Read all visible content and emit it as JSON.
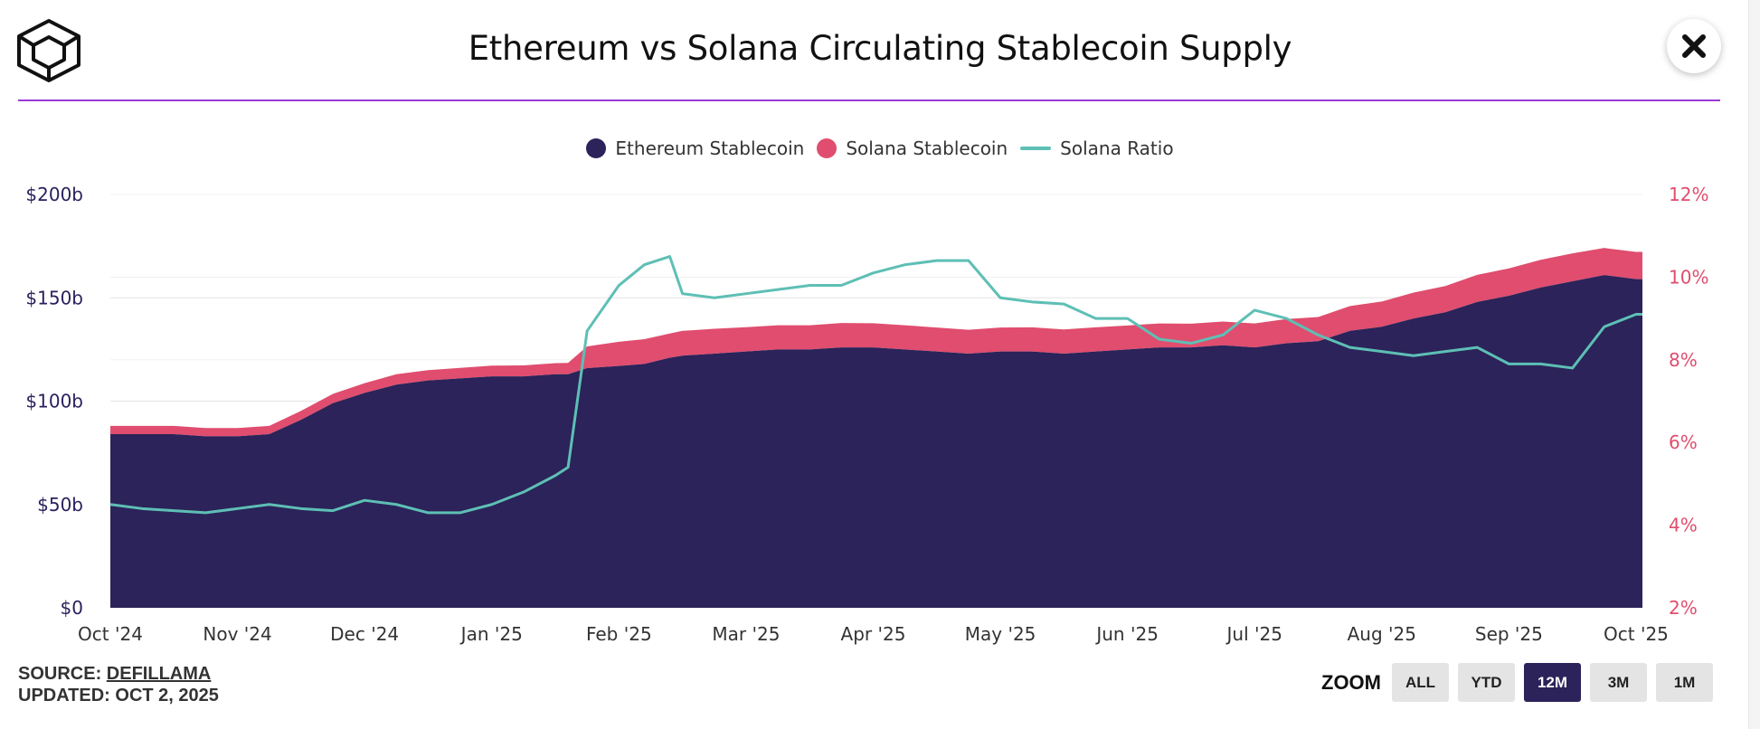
{
  "header": {
    "title": "Ethereum vs Solana Circulating Stablecoin Supply",
    "logo_icon": "cube-logo-icon",
    "close_icon": "close-icon"
  },
  "legend": {
    "items": [
      {
        "label": "Ethereum Stablecoin",
        "color": "#2b2359",
        "swatch": "dot"
      },
      {
        "label": "Solana Stablecoin",
        "color": "#e04d6e",
        "swatch": "dot"
      },
      {
        "label": "Solana Ratio",
        "color": "#5ebfb5",
        "swatch": "line"
      }
    ]
  },
  "footer": {
    "source_prefix": "SOURCE: ",
    "source_link": "DEFILLAMA",
    "updated": "UPDATED: OCT 2, 2025"
  },
  "zoom": {
    "label": "ZOOM",
    "buttons": [
      "ALL",
      "YTD",
      "12M",
      "3M",
      "1M"
    ],
    "active": "12M"
  },
  "chart_data": {
    "type": "area",
    "title": "Ethereum vs Solana Circulating Stablecoin Supply",
    "x_label_ticks": [
      "Oct '24",
      "Nov '24",
      "Dec '24",
      "Jan '25",
      "Feb '25",
      "Mar '25",
      "Apr '25",
      "May '25",
      "Jun '25",
      "Jul '25",
      "Aug '25",
      "Sep '25",
      "Oct '25"
    ],
    "y_left": {
      "ticks": [
        "$0",
        "$50b",
        "$100b",
        "$150b",
        "$200b"
      ],
      "range": [
        0,
        200
      ],
      "unit": "$b"
    },
    "y_right": {
      "ticks": [
        "2%",
        "4%",
        "6%",
        "8%",
        "10%",
        "12%"
      ],
      "range": [
        2,
        12
      ],
      "unit": "%"
    },
    "x_months": [
      0,
      0.25,
      0.5,
      0.75,
      1,
      1.25,
      1.5,
      1.75,
      2,
      2.25,
      2.5,
      2.75,
      3,
      3.25,
      3.5,
      3.6,
      3.75,
      4,
      4.2,
      4.4,
      4.5,
      4.75,
      5,
      5.25,
      5.5,
      5.75,
      6,
      6.25,
      6.5,
      6.75,
      7,
      7.25,
      7.5,
      7.75,
      8,
      8.25,
      8.5,
      8.75,
      9,
      9.25,
      9.5,
      9.75,
      10,
      10.25,
      10.5,
      10.75,
      11,
      11.25,
      11.5,
      11.75,
      12,
      12.05
    ],
    "series": [
      {
        "name": "Ethereum Stablecoin",
        "axis": "left",
        "color": "#2b2359",
        "values": [
          84,
          84,
          84,
          83,
          83,
          84,
          91,
          99,
          104,
          108,
          110,
          111,
          112,
          112,
          113,
          113,
          116,
          117,
          118,
          121,
          122,
          123,
          124,
          125,
          125,
          126,
          126,
          125,
          124,
          123,
          124,
          124,
          123,
          124,
          125,
          126,
          126,
          127,
          126,
          128,
          129,
          134,
          136,
          140,
          143,
          148,
          151,
          155,
          158,
          161,
          159,
          159
        ]
      },
      {
        "name": "Solana Stablecoin",
        "axis": "left",
        "color": "#e04d6e",
        "values": [
          4,
          4,
          4,
          4,
          4,
          4,
          4.3,
          4.5,
          4.7,
          5,
          5,
          5.1,
          5.2,
          5.3,
          5.4,
          5.5,
          10.5,
          11.7,
          12,
          11.7,
          12,
          12,
          11.8,
          11.7,
          11.7,
          11.8,
          11.7,
          11.7,
          11.6,
          11.5,
          11.6,
          11.7,
          11.7,
          11.7,
          11.6,
          11.6,
          11.5,
          11.5,
          11.6,
          11.7,
          11.7,
          12,
          12.2,
          12.5,
          12.7,
          13.1,
          13.2,
          13.4,
          13.5,
          13.1,
          13.2,
          13.2
        ]
      },
      {
        "name": "Solana Ratio",
        "axis": "right",
        "color": "#5ebfb5",
        "values": [
          4.5,
          4.4,
          4.35,
          4.3,
          4.4,
          4.5,
          4.4,
          4.35,
          4.6,
          4.5,
          4.3,
          4.3,
          4.5,
          4.8,
          5.2,
          5.4,
          8.7,
          9.8,
          10.3,
          10.5,
          9.6,
          9.5,
          9.6,
          9.7,
          9.8,
          9.8,
          10.1,
          10.3,
          10.4,
          10.4,
          9.5,
          9.4,
          9.35,
          9.0,
          9.0,
          8.5,
          8.4,
          8.6,
          9.2,
          9.0,
          8.6,
          8.3,
          8.2,
          8.1,
          8.2,
          8.3,
          7.9,
          7.9,
          7.8,
          8.8,
          9.1,
          9.1
        ]
      }
    ]
  }
}
